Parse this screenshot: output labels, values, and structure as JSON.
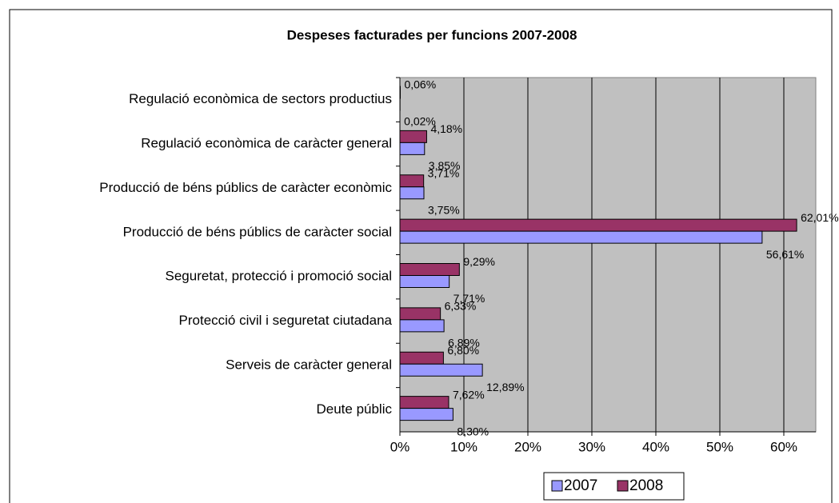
{
  "chart_data": {
    "type": "bar",
    "orientation": "horizontal",
    "title": "Despeses facturades per funcions 2007-2008",
    "categories": [
      "Regulació econòmica de sectors productius",
      "Regulació econòmica de caràcter general",
      "Producció de béns públics de caràcter econòmic",
      "Producció de béns públics de caràcter social",
      "Seguretat, protecció i promoció social",
      "Protecció civil i seguretat ciutadana",
      "Serveis de caràcter general",
      "Deute públic"
    ],
    "series": [
      {
        "name": "2007",
        "color": "#9999ff",
        "values": [
          0.02,
          3.85,
          3.75,
          56.61,
          7.71,
          6.89,
          12.89,
          8.3
        ],
        "value_labels": [
          "0,02%",
          "3,85%",
          "3,75%",
          "56,61%",
          "7,71%",
          "6,89%",
          "12,89%",
          "8,30%"
        ]
      },
      {
        "name": "2008",
        "color": "#993366",
        "values": [
          0.06,
          4.18,
          3.71,
          62.01,
          9.29,
          6.33,
          6.8,
          7.62
        ],
        "value_labels": [
          "0,06%",
          "4,18%",
          "3,71%",
          "62,01%",
          "9,29%",
          "6,33%",
          "6,80%",
          "7,62%"
        ]
      }
    ],
    "xlim": [
      0,
      65
    ],
    "xticks": [
      {
        "value": 0,
        "label": "0%"
      },
      {
        "value": 10,
        "label": "10%"
      },
      {
        "value": 20,
        "label": "20%"
      },
      {
        "value": 30,
        "label": "30%"
      },
      {
        "value": 40,
        "label": "40%"
      },
      {
        "value": 50,
        "label": "50%"
      },
      {
        "value": 60,
        "label": "60%"
      }
    ],
    "grid": true,
    "legend": "bottom"
  }
}
